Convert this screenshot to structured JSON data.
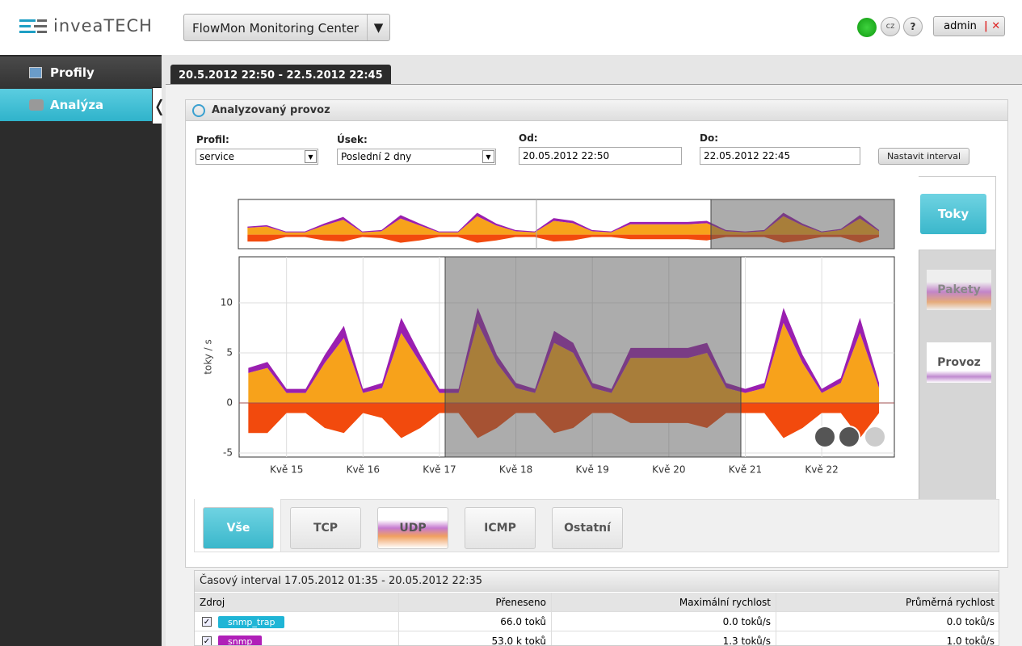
{
  "header": {
    "logo": "inveaTECH",
    "app": "FlowMon Monitoring Center",
    "lang": "cz",
    "help": "?",
    "user": "admin"
  },
  "sidebar": {
    "items": [
      "Profily",
      "Analýza"
    ]
  },
  "tab": "20.5.2012 22:50 - 22.5.2012 22:45",
  "panel": {
    "title": "Analyzovaný provoz",
    "form": {
      "profile_label": "Profil:",
      "profile": "service",
      "range_label": "Úsek:",
      "range": "Poslední 2 dny",
      "from_label": "Od:",
      "from": "20.05.2012 22:50",
      "to_label": "Do:",
      "to": "22.05.2012 22:45",
      "button": "Nastavit interval"
    }
  },
  "chart_data": {
    "type": "area",
    "stacked": true,
    "ylabel": "toky / s",
    "x": [
      14.5,
      14.75,
      15,
      15.25,
      15.5,
      15.75,
      16,
      16.25,
      16.5,
      16.75,
      17,
      17.25,
      17.5,
      17.75,
      18,
      18.25,
      18.5,
      18.75,
      19,
      19.25,
      19.5,
      19.75,
      20,
      20.25,
      20.5,
      20.75,
      21,
      21.25,
      21.5,
      21.75,
      22,
      22.25,
      22.5,
      22.75
    ],
    "series": [
      {
        "color": "#f7a21b",
        "values": [
          3,
          3.5,
          1,
          1,
          4,
          6.5,
          1,
          1.5,
          7,
          4,
          1,
          1,
          8,
          4,
          1.5,
          1,
          6,
          5,
          1.5,
          1,
          4.5,
          4.5,
          4.5,
          4.5,
          5,
          1.5,
          1,
          1.5,
          8,
          4,
          1,
          2,
          7,
          1.5
        ]
      },
      {
        "color": "#9a1fb0",
        "values": [
          0.5,
          0.6,
          0.4,
          0.4,
          0.8,
          1.2,
          0.4,
          0.5,
          1.5,
          0.8,
          0.4,
          0.4,
          1.5,
          0.8,
          0.5,
          0.4,
          1.2,
          1,
          0.5,
          0.4,
          1,
          1,
          1,
          1,
          1,
          0.5,
          0.4,
          0.5,
          1.5,
          0.8,
          0.4,
          0.5,
          1.5,
          0.5
        ]
      },
      {
        "color": "#f24a0d",
        "values": [
          -3,
          -3,
          -1,
          -1,
          -2.5,
          -3,
          -1,
          -1.5,
          -3.5,
          -2.5,
          -1,
          -1,
          -3.5,
          -2.5,
          -1,
          -1,
          -3,
          -2.5,
          -1,
          -1,
          -2,
          -2,
          -2,
          -2,
          -2.5,
          -1,
          -1,
          -1,
          -3.5,
          -2.5,
          -1,
          -1,
          -3.5,
          -1
        ]
      }
    ],
    "xlim": [
      14.38,
      22.95
    ],
    "xticks": [
      {
        "value": 15,
        "label": "Kvě 15"
      },
      {
        "value": 16,
        "label": "Kvě 16"
      },
      {
        "value": 17,
        "label": "Kvě 17"
      },
      {
        "value": 18,
        "label": "Kvě 18"
      },
      {
        "value": 19,
        "label": "Kvě 19"
      },
      {
        "value": 20,
        "label": "Kvě 20"
      },
      {
        "value": 21,
        "label": "Kvě 21"
      },
      {
        "value": 22,
        "label": "Kvě 22"
      }
    ],
    "ylim": [
      -5.4,
      14.6
    ],
    "yticks": [
      -5,
      0,
      5,
      10
    ],
    "grid": true
  },
  "side_tabs": [
    "Toky",
    "Pakety",
    "Provoz"
  ],
  "protocol_tabs": [
    "Vše",
    "TCP",
    "UDP",
    "ICMP",
    "Ostatní"
  ],
  "table": {
    "title": "Časový interval 17.05.2012 01:35 - 20.05.2012 22:35",
    "columns": [
      "Zdroj",
      "Přeneseno",
      "Maximální rychlost",
      "Průměrná rychlost"
    ],
    "rows": [
      {
        "source": "snmp_trap",
        "color": "#1fb5d6",
        "cells": [
          "66.0 toků",
          "0.0 toků/s",
          "0.0 toků/s"
        ]
      },
      {
        "source": "snmp",
        "color": "#b01fb8",
        "cells": [
          "53.0 k toků",
          "1.3 toků/s",
          "1.0 toků/s"
        ]
      }
    ]
  }
}
